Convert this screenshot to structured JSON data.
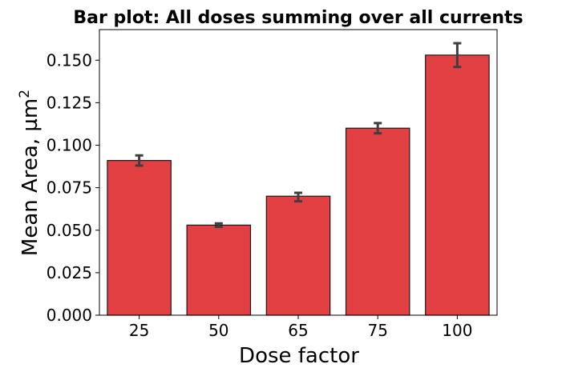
{
  "chart_data": {
    "type": "bar",
    "title": "Bar plot: All doses summing over all currents",
    "xlabel": "Dose factor",
    "ylabel": "Mean Area, µm",
    "ylabel_superscript": "2",
    "categories": [
      "25",
      "50",
      "65",
      "75",
      "100"
    ],
    "values": [
      0.091,
      0.053,
      0.07,
      0.11,
      0.153
    ],
    "error_low": [
      0.088,
      0.052,
      0.067,
      0.107,
      0.146
    ],
    "error_high": [
      0.094,
      0.054,
      0.072,
      0.113,
      0.16
    ],
    "ylim": [
      0,
      0.168
    ],
    "yticks": [
      "0.000",
      "0.025",
      "0.050",
      "0.075",
      "0.100",
      "0.125",
      "0.150"
    ],
    "ytick_values": [
      0,
      0.025,
      0.05,
      0.075,
      0.1,
      0.125,
      0.15
    ],
    "bar_color": "#e24043",
    "bar_edge_color": "#1a1a1a",
    "error_color": "#3f3f3f",
    "grid": false,
    "legend": "none"
  }
}
